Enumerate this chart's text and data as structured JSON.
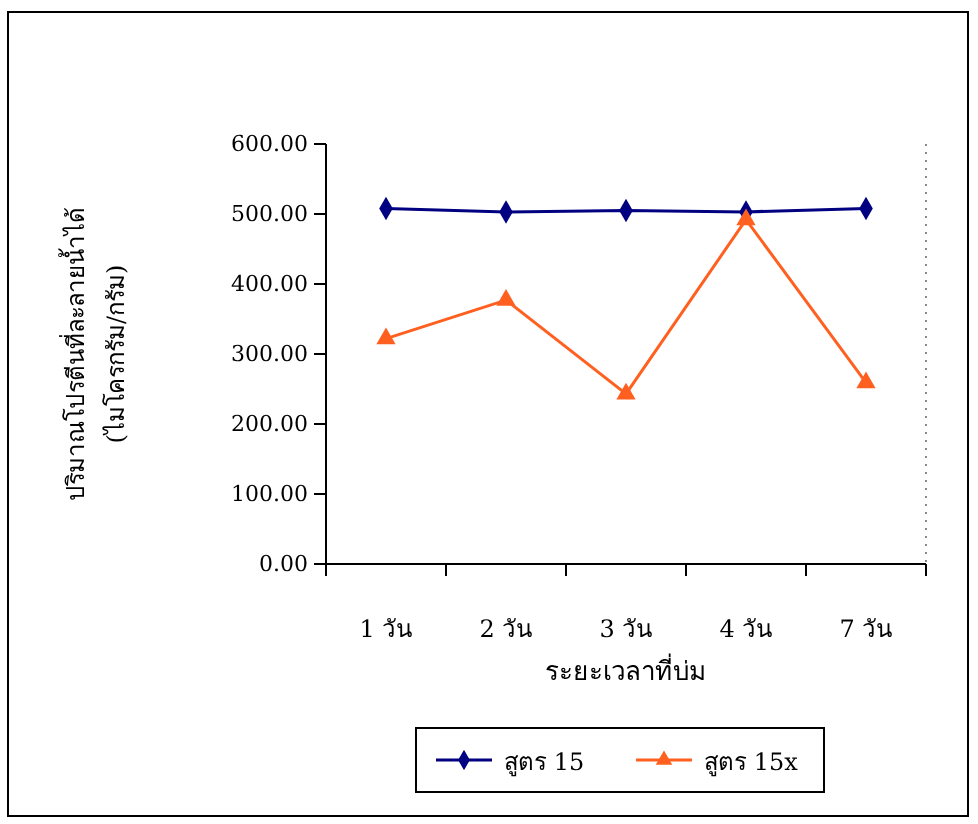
{
  "chart_data": {
    "type": "line",
    "xlabel": "ระยะเวลาที่บ่ม",
    "ylabel": "ปริมาณโปรตีนที่ละลายน้ำได้\n(ไมโครกรัม/กรัม)",
    "categories": [
      "1 วัน",
      "2 วัน",
      "3 วัน",
      "4 วัน",
      "7 วัน"
    ],
    "series": [
      {
        "name": "สูตร 15",
        "color": "#000080",
        "marker": "diamond",
        "values": [
          508,
          503,
          505,
          503,
          508
        ]
      },
      {
        "name": "สูตร 15x",
        "color": "#ff6020",
        "marker": "triangle",
        "values": [
          322,
          377,
          243,
          492,
          259
        ]
      }
    ],
    "ylim": [
      0,
      600
    ],
    "yticks": [
      {
        "value": 0,
        "label": "0.00"
      },
      {
        "value": 100,
        "label": "100.00"
      },
      {
        "value": 200,
        "label": "200.00"
      },
      {
        "value": 300,
        "label": "300.00"
      },
      {
        "value": 400,
        "label": "400.00"
      },
      {
        "value": 500,
        "label": "500.00"
      },
      {
        "value": 600,
        "label": "600.00"
      }
    ],
    "grid": false,
    "legend": "bottom",
    "line_style": "solid"
  }
}
